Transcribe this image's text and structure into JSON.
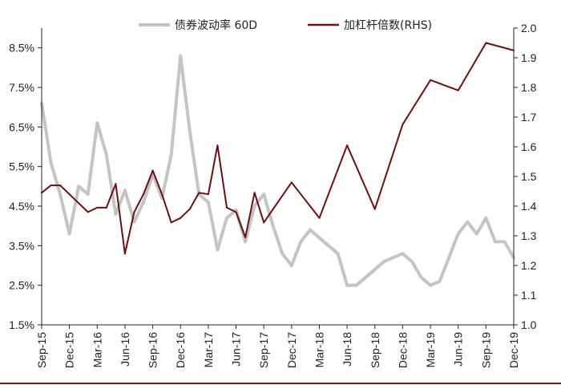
{
  "chart_data": {
    "type": "line",
    "legend_position": "top",
    "grid": false,
    "x_ticks": [
      "Sep-15",
      "Dec-15",
      "Mar-16",
      "Jun-16",
      "Sep-16",
      "Dec-16",
      "Mar-17",
      "Jun-17",
      "Sep-17",
      "Dec-17",
      "Mar-18",
      "Jun-18",
      "Sep-18",
      "Dec-18",
      "Mar-19",
      "Jun-19",
      "Sep-19",
      "Dec-19"
    ],
    "y_left": {
      "ticks": [
        "1.5%",
        "2.5%",
        "3.5%",
        "4.5%",
        "5.5%",
        "6.5%",
        "7.5%",
        "8.5%"
      ],
      "range": [
        1.5,
        9.0
      ],
      "unit": "%"
    },
    "y_right": {
      "ticks": [
        "1.0",
        "1.1",
        "1.2",
        "1.3",
        "1.4",
        "1.5",
        "1.6",
        "1.7",
        "1.8",
        "1.9",
        "2.0"
      ],
      "range": [
        1.0,
        2.0
      ]
    },
    "series": [
      {
        "name": "债券波动率 60D",
        "axis": "left",
        "color": "#c4c4c4",
        "x": [
          "2015-09",
          "2015-10",
          "2015-11",
          "2015-12",
          "2016-01",
          "2016-02",
          "2016-03",
          "2016-04",
          "2016-05",
          "2016-06",
          "2016-07",
          "2016-08",
          "2016-09",
          "2016-10",
          "2016-11",
          "2016-12",
          "2017-01",
          "2017-02",
          "2017-03",
          "2017-04",
          "2017-05",
          "2017-06",
          "2017-07",
          "2017-08",
          "2017-09",
          "2017-10",
          "2017-11",
          "2017-12",
          "2018-01",
          "2018-02",
          "2018-03",
          "2018-04",
          "2018-05",
          "2018-06",
          "2018-07",
          "2018-08",
          "2018-09",
          "2018-10",
          "2018-11",
          "2018-12",
          "2019-01",
          "2019-02",
          "2019-03",
          "2019-04",
          "2019-05",
          "2019-06",
          "2019-07",
          "2019-08",
          "2019-09",
          "2019-10",
          "2019-11",
          "2019-12"
        ],
        "values": [
          7.1,
          5.6,
          4.8,
          3.8,
          5.0,
          4.8,
          6.6,
          5.8,
          4.3,
          4.9,
          4.1,
          4.6,
          5.3,
          4.7,
          5.8,
          8.3,
          6.4,
          4.8,
          4.6,
          3.4,
          4.2,
          4.4,
          3.6,
          4.5,
          4.8,
          4.0,
          3.3,
          3.0,
          3.6,
          3.9,
          3.7,
          3.5,
          3.3,
          2.5,
          2.5,
          2.7,
          2.9,
          3.1,
          3.2,
          3.3,
          3.1,
          2.7,
          2.5,
          2.6,
          3.2,
          3.8,
          4.1,
          3.8,
          4.2,
          3.6,
          3.6,
          3.2
        ]
      },
      {
        "name": "加杠杆倍数(RHS)",
        "axis": "right",
        "color": "#6b0f14",
        "x": [
          "2015-09",
          "2015-10",
          "2015-11",
          "2015-12",
          "2016-01",
          "2016-02",
          "2016-03",
          "2016-04",
          "2016-05",
          "2016-06",
          "2016-07",
          "2016-08",
          "2016-09",
          "2016-10",
          "2016-11",
          "2016-12",
          "2017-01",
          "2017-02",
          "2017-03",
          "2017-04",
          "2017-05",
          "2017-06",
          "2017-07",
          "2017-08",
          "2017-09",
          "2017-12",
          "2018-03",
          "2018-06",
          "2018-09",
          "2018-12",
          "2019-03",
          "2019-06",
          "2019-09",
          "2019-12"
        ],
        "values": [
          1.445,
          1.47,
          1.47,
          1.44,
          1.41,
          1.38,
          1.395,
          1.395,
          1.475,
          1.24,
          1.38,
          1.44,
          1.52,
          1.44,
          1.345,
          1.36,
          1.39,
          1.445,
          1.44,
          1.605,
          1.395,
          1.38,
          1.295,
          1.445,
          1.345,
          1.48,
          1.36,
          1.605,
          1.39,
          1.675,
          1.825,
          1.79,
          1.95,
          1.925
        ]
      }
    ]
  }
}
